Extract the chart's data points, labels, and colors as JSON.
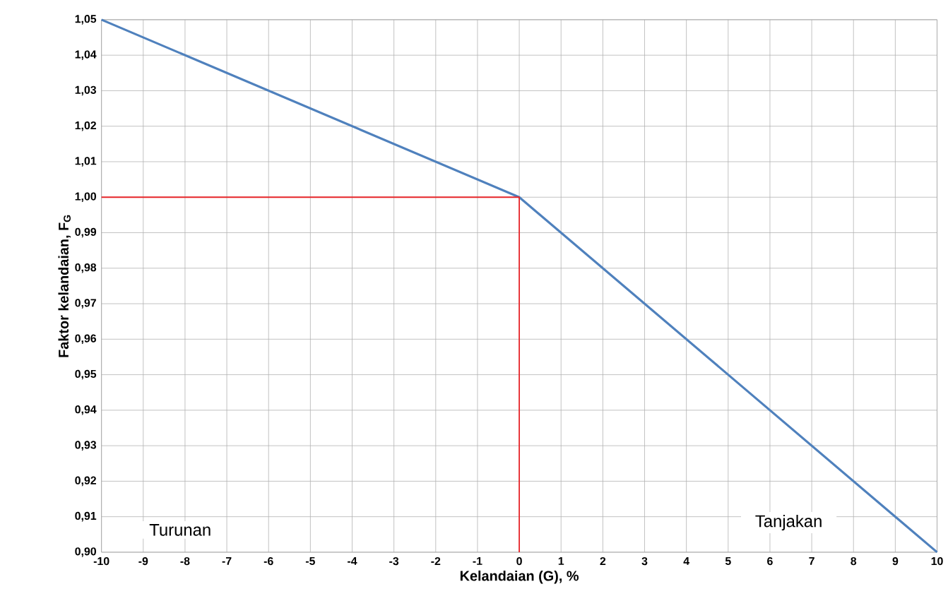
{
  "chart_data": {
    "type": "line",
    "xlabel": "Kelandaian (G), %",
    "ylabel": "Faktor kelandaian, F$_{G}$",
    "series": [
      {
        "x": [
          -10,
          0,
          10
        ],
        "values": [
          1.05,
          1.0,
          0.9
        ],
        "color": "#4f81bd"
      },
      {
        "x": [
          -10,
          0,
          0
        ],
        "values": [
          1.0,
          1.0,
          0.9
        ],
        "color": "#e8262a"
      }
    ],
    "xlim": [
      -10,
      10
    ],
    "xticks": [
      -10,
      -9,
      -8,
      -7,
      -6,
      -5,
      -4,
      -3,
      -2,
      -1,
      0,
      1,
      2,
      3,
      4,
      5,
      6,
      7,
      8,
      9,
      10
    ],
    "ylim": [
      0.9,
      1.05
    ],
    "yticks": [
      {
        "value": 0.9,
        "label": "0,90"
      },
      {
        "value": 0.91,
        "label": "0,91"
      },
      {
        "value": 0.92,
        "label": "0,92"
      },
      {
        "value": 0.93,
        "label": "0,93"
      },
      {
        "value": 0.94,
        "label": "0,94"
      },
      {
        "value": 0.95,
        "label": "0,95"
      },
      {
        "value": 0.96,
        "label": "0,96"
      },
      {
        "value": 0.97,
        "label": "0,97"
      },
      {
        "value": 0.98,
        "label": "0,98"
      },
      {
        "value": 0.99,
        "label": "0,99"
      },
      {
        "value": 1.0,
        "label": "1,00"
      },
      {
        "value": 1.01,
        "label": "1,01"
      },
      {
        "value": 1.02,
        "label": "1,02"
      },
      {
        "value": 1.03,
        "label": "1,03"
      },
      {
        "value": 1.04,
        "label": "1,04"
      },
      {
        "value": 1.05,
        "label": "1,05"
      }
    ],
    "grid": true,
    "marker": "none",
    "line_style": "solid",
    "annotations": [
      "Turunan",
      "Tanjakan"
    ]
  }
}
